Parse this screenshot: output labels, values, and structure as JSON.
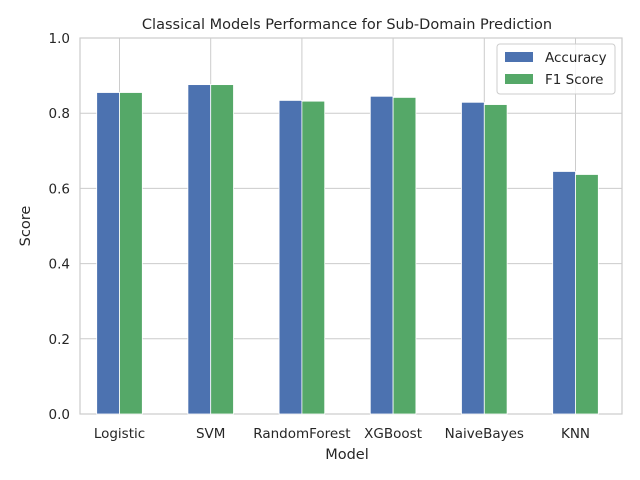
{
  "chart_data": {
    "type": "bar",
    "title": "Classical Models Performance for Sub-Domain Prediction",
    "xlabel": "Model",
    "ylabel": "Score",
    "categories": [
      "Logistic",
      "SVM",
      "RandomForest",
      "XGBoost",
      "NaiveBayes",
      "KNN"
    ],
    "series": [
      {
        "name": "Accuracy",
        "values": [
          0.855,
          0.876,
          0.834,
          0.845,
          0.829,
          0.645
        ],
        "color": "#4c72b0"
      },
      {
        "name": "F1 Score",
        "values": [
          0.855,
          0.876,
          0.832,
          0.842,
          0.823,
          0.637
        ],
        "color": "#55a868"
      }
    ],
    "ylim": [
      0,
      1.0
    ],
    "yticks": [
      "0.0",
      "0.2",
      "0.4",
      "0.6",
      "0.8",
      "1.0"
    ],
    "grid": true,
    "legend_position": "top-right"
  }
}
